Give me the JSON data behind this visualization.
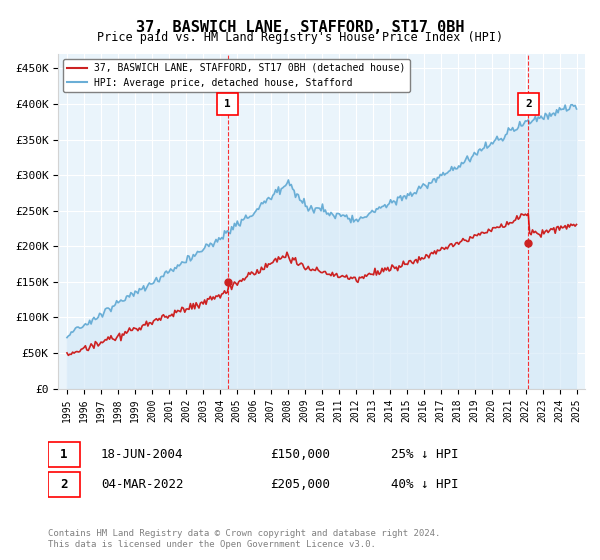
{
  "title": "37, BASWICH LANE, STAFFORD, ST17 0BH",
  "subtitle": "Price paid vs. HM Land Registry's House Price Index (HPI)",
  "ylabel_ticks": [
    "£0",
    "£50K",
    "£100K",
    "£150K",
    "£200K",
    "£250K",
    "£300K",
    "£350K",
    "£400K",
    "£450K"
  ],
  "ytick_vals": [
    0,
    50000,
    100000,
    150000,
    200000,
    250000,
    300000,
    350000,
    400000,
    450000
  ],
  "ylim": [
    0,
    470000
  ],
  "xlim_start": 1994.5,
  "xlim_end": 2025.5,
  "hpi_color": "#6aaed6",
  "hpi_fill_color": "#d6eaf8",
  "price_color": "#cc2222",
  "marker1_date": "18-JUN-2004",
  "marker1_price": 150000,
  "marker1_year": 2004.46,
  "marker2_date": "04-MAR-2022",
  "marker2_price": 205000,
  "marker2_year": 2022.17,
  "legend_label_red": "37, BASWICH LANE, STAFFORD, ST17 0BH (detached house)",
  "legend_label_blue": "HPI: Average price, detached house, Stafford",
  "footnote1": "Contains HM Land Registry data © Crown copyright and database right 2024.",
  "footnote2": "This data is licensed under the Open Government Licence v3.0.",
  "table_row1_num": "1",
  "table_row1_date": "18-JUN-2004",
  "table_row1_price": "£150,000",
  "table_row1_pct": "25% ↓ HPI",
  "table_row2_num": "2",
  "table_row2_date": "04-MAR-2022",
  "table_row2_price": "£205,000",
  "table_row2_pct": "40% ↓ HPI",
  "bg_color": "#eaf4fb",
  "plot_bg": "#eaf4fb"
}
